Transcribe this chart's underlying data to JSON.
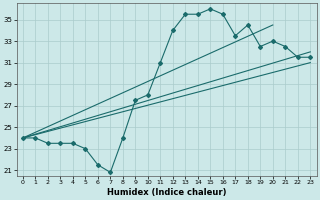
{
  "title": "",
  "xlabel": "Humidex (Indice chaleur)",
  "bg_color": "#cce8e8",
  "grid_color": "#aacccc",
  "line_color": "#1a6b6b",
  "xlim": [
    -0.5,
    23.5
  ],
  "ylim": [
    20.5,
    36.5
  ],
  "xticks": [
    0,
    1,
    2,
    3,
    4,
    5,
    6,
    7,
    8,
    9,
    10,
    11,
    12,
    13,
    14,
    15,
    16,
    17,
    18,
    19,
    20,
    21,
    22,
    23
  ],
  "yticks": [
    21,
    23,
    25,
    27,
    29,
    31,
    33,
    35
  ],
  "lines": [
    {
      "x": [
        0,
        1,
        2,
        3,
        4,
        5,
        6,
        7,
        8,
        9,
        10,
        11,
        12,
        13,
        14,
        15,
        16,
        17,
        18,
        19,
        20,
        21,
        22,
        23
      ],
      "y": [
        24.0,
        24.0,
        23.5,
        23.5,
        23.5,
        23.0,
        21.5,
        20.8,
        24.0,
        27.5,
        28.0,
        31.0,
        34.0,
        35.5,
        35.5,
        36.0,
        35.5,
        33.5,
        34.5,
        32.5,
        33.0,
        32.5,
        31.5,
        31.5
      ],
      "has_markers": true
    },
    {
      "x": [
        0,
        20
      ],
      "y": [
        24.0,
        34.5
      ],
      "has_markers": false
    },
    {
      "x": [
        0,
        23
      ],
      "y": [
        24.0,
        32.0
      ],
      "has_markers": false
    },
    {
      "x": [
        0,
        23
      ],
      "y": [
        24.0,
        31.0
      ],
      "has_markers": false
    }
  ]
}
